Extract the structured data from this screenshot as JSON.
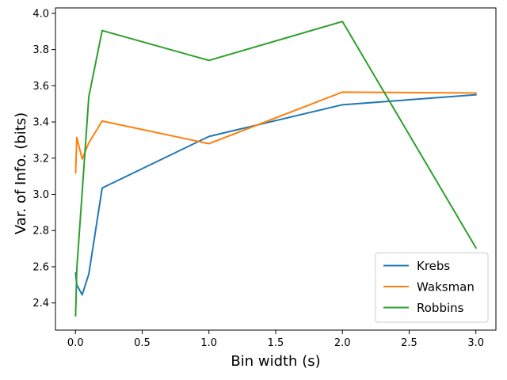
{
  "chart_data": {
    "type": "line",
    "title": "",
    "xlabel": "Bin width (s)",
    "ylabel": "Var. of Info. (bits)",
    "xlim": [
      -0.15,
      3.15
    ],
    "ylim": [
      2.25,
      4.03
    ],
    "xticks": [
      0.0,
      0.5,
      1.0,
      1.5,
      2.0,
      2.5,
      3.0
    ],
    "xtick_labels": [
      "0.0",
      "0.5",
      "1.0",
      "1.5",
      "2.0",
      "2.5",
      "3.0"
    ],
    "yticks": [
      2.4,
      2.6,
      2.8,
      3.0,
      3.2,
      3.4,
      3.6,
      3.8,
      4.0
    ],
    "ytick_labels": [
      "2.4",
      "2.6",
      "2.8",
      "3.0",
      "3.2",
      "3.4",
      "3.6",
      "3.8",
      "4.0"
    ],
    "grid": false,
    "legend_position": "bottom-right",
    "x": [
      0.001,
      0.01,
      0.05,
      0.1,
      0.2,
      1.0,
      2.0,
      3.0
    ],
    "series": [
      {
        "name": "Krebs",
        "color": "#1f77b4",
        "values": [
          2.565,
          2.5,
          2.445,
          2.56,
          3.035,
          3.32,
          3.495,
          3.55
        ]
      },
      {
        "name": "Waksman",
        "color": "#ff7f0e",
        "values": [
          3.12,
          3.315,
          3.195,
          3.285,
          3.405,
          3.28,
          3.565,
          3.56
        ]
      },
      {
        "name": "Robbins",
        "color": "#2ca02c",
        "values": [
          2.33,
          2.59,
          3.01,
          3.54,
          3.905,
          3.74,
          3.955,
          2.705
        ]
      }
    ]
  }
}
